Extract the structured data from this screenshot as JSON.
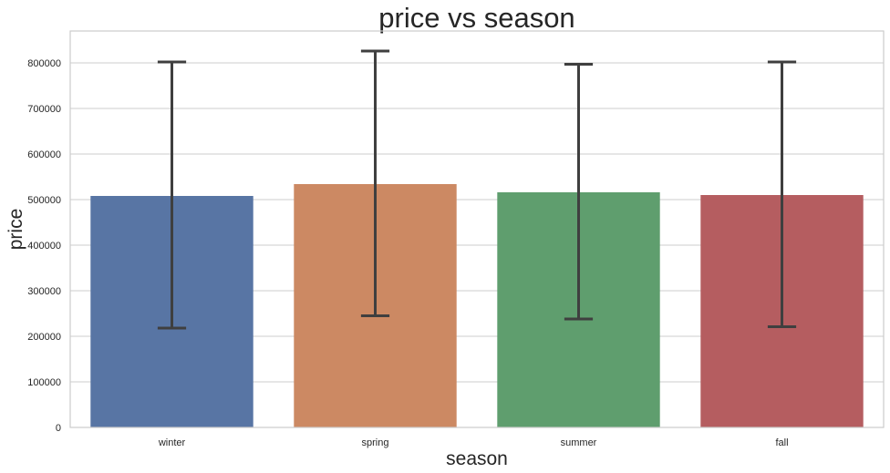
{
  "chart_data": {
    "type": "bar",
    "title": "price vs season",
    "xlabel": "season",
    "ylabel": "price",
    "categories": [
      "winter",
      "spring",
      "summer",
      "fall"
    ],
    "values": [
      508000,
      534000,
      516000,
      510000
    ],
    "error_low": [
      218000,
      245000,
      238000,
      221000
    ],
    "error_high": [
      802000,
      826000,
      797000,
      802000
    ],
    "colors": [
      "#5875a4",
      "#cc8963",
      "#5f9e6e",
      "#b55d60"
    ],
    "ylim": [
      0,
      870000
    ],
    "yticks": [
      0,
      100000,
      200000,
      300000,
      400000,
      500000,
      600000,
      700000,
      800000
    ],
    "ytick_labels": [
      "0",
      "100000",
      "200000",
      "300000",
      "400000",
      "500000",
      "600000",
      "700000",
      "800000"
    ],
    "grid": true,
    "error_color": "#3f3f3f"
  }
}
